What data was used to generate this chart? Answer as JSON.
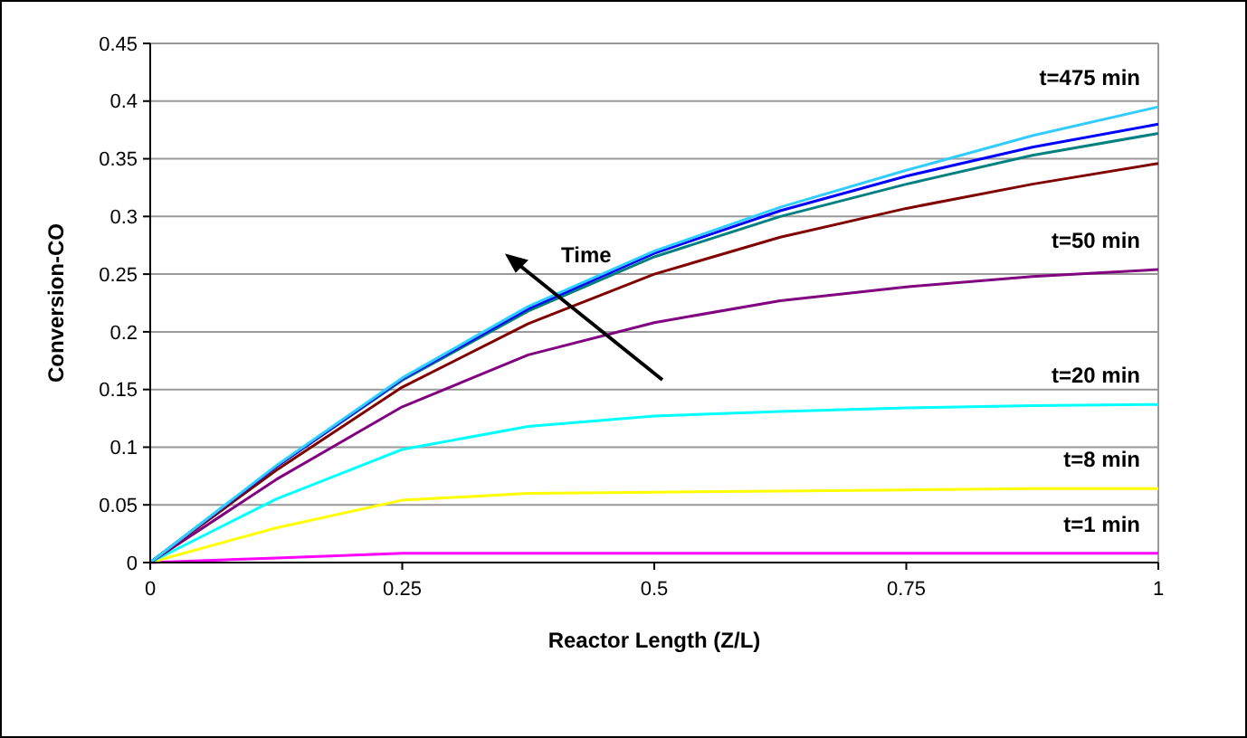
{
  "chart_data": {
    "type": "line",
    "xlabel": "Reactor Length (Z/L)",
    "ylabel": "Conversion-CO",
    "x": [
      0,
      0.125,
      0.25,
      0.375,
      0.5,
      0.625,
      0.75,
      0.875,
      1
    ],
    "xlim": [
      0,
      1
    ],
    "xticks": [
      0,
      0.25,
      0.5,
      0.75,
      1
    ],
    "ylim": [
      0,
      0.45
    ],
    "yticks": [
      0,
      0.05,
      0.1,
      0.15,
      0.2,
      0.25,
      0.3,
      0.35,
      0.4,
      0.45
    ],
    "grid": "y",
    "marker": "none",
    "line_style": "solid",
    "annotations": [
      "Time"
    ],
    "series": [
      {
        "name": "t=1 min",
        "color": "#ff00ff",
        "values": [
          0,
          0.004,
          0.008,
          0.008,
          0.008,
          0.008,
          0.008,
          0.008,
          0.008
        ]
      },
      {
        "name": "t=8 min",
        "color": "#ffff00",
        "values": [
          0,
          0.03,
          0.054,
          0.06,
          0.061,
          0.062,
          0.063,
          0.064,
          0.064
        ]
      },
      {
        "name": "t=20 min",
        "color": "#00ffff",
        "values": [
          0,
          0.055,
          0.098,
          0.118,
          0.127,
          0.131,
          0.134,
          0.136,
          0.137
        ]
      },
      {
        "name": "t=50 min",
        "color": "#800080",
        "values": [
          0,
          0.072,
          0.135,
          0.18,
          0.208,
          0.227,
          0.239,
          0.248,
          0.254
        ]
      },
      {
        "color": "#800000",
        "values": [
          0,
          0.08,
          0.152,
          0.207,
          0.25,
          0.282,
          0.307,
          0.328,
          0.346
        ]
      },
      {
        "color": "#008080",
        "values": [
          0,
          0.083,
          0.158,
          0.218,
          0.265,
          0.3,
          0.328,
          0.353,
          0.372
        ]
      },
      {
        "color": "#0000ff",
        "values": [
          0,
          0.083,
          0.159,
          0.22,
          0.268,
          0.305,
          0.335,
          0.36,
          0.38
        ]
      },
      {
        "name": "t=475 min",
        "color": "#33ccff",
        "values": [
          0,
          0.084,
          0.16,
          0.222,
          0.27,
          0.308,
          0.34,
          0.37,
          0.395
        ]
      }
    ]
  }
}
